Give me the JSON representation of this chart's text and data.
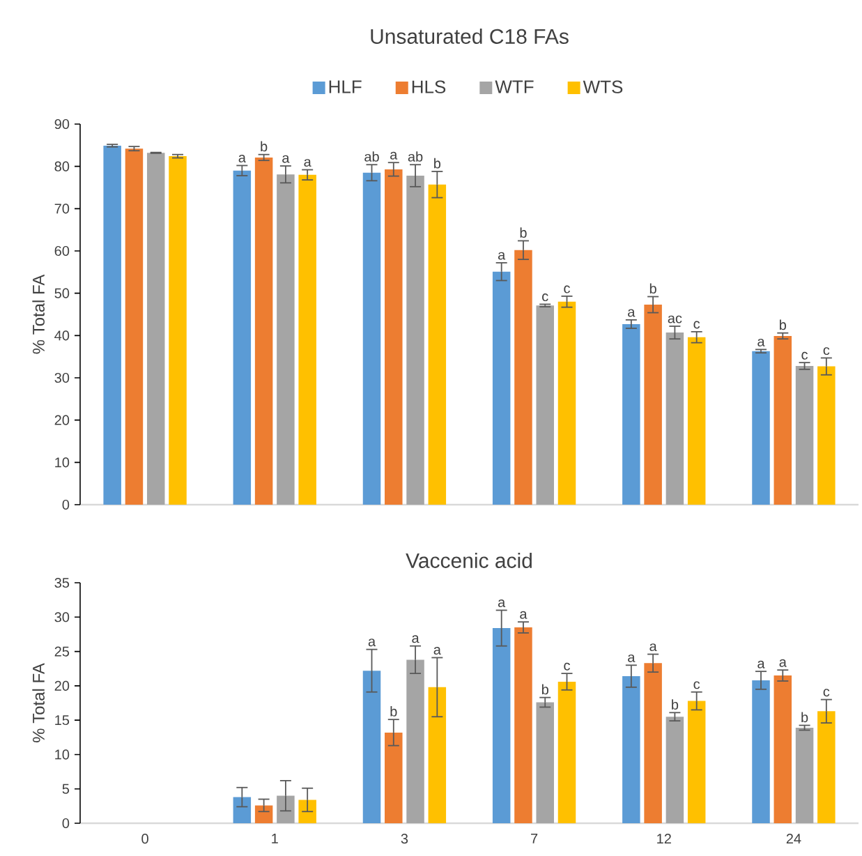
{
  "chart_data": [
    {
      "type": "bar",
      "title": "Unsaturated C18 FAs",
      "ylabel": "% Total FA",
      "categories": [
        "0",
        "1",
        "3",
        "7",
        "12",
        "24"
      ],
      "tick_labels": "y",
      "legend": "top",
      "ylim": [
        0,
        90
      ],
      "yticks": [
        0,
        10,
        20,
        30,
        40,
        50,
        60,
        70,
        80,
        90
      ],
      "series": [
        {
          "name": "HLF",
          "color": "#5b9bd5",
          "values": [
            84.9,
            79.0,
            78.5,
            55.1,
            42.7,
            36.3
          ],
          "errors": [
            0.3,
            1.2,
            1.9,
            2.1,
            1.0,
            0.4
          ],
          "value_labels": [
            null,
            "a",
            "ab",
            "a",
            "a",
            "a"
          ]
        },
        {
          "name": "HLS",
          "color": "#ed7d31",
          "values": [
            84.2,
            82.1,
            79.3,
            60.2,
            47.3,
            39.9
          ],
          "errors": [
            0.5,
            0.7,
            1.6,
            2.2,
            1.9,
            0.7
          ],
          "value_labels": [
            null,
            "b",
            "a",
            "b",
            "b",
            "b"
          ]
        },
        {
          "name": "WTF",
          "color": "#a5a5a5",
          "values": [
            83.2,
            78.1,
            77.8,
            47.1,
            40.7,
            32.8
          ],
          "errors": [
            0.1,
            2.0,
            2.6,
            0.3,
            1.5,
            0.8
          ],
          "value_labels": [
            null,
            "a",
            "ab",
            "c",
            "ac",
            "c"
          ]
        },
        {
          "name": "WTS",
          "color": "#ffc000",
          "values": [
            82.4,
            78.0,
            75.7,
            48.0,
            39.6,
            32.7
          ],
          "errors": [
            0.4,
            1.2,
            3.1,
            1.3,
            1.3,
            2.0
          ],
          "value_labels": [
            null,
            "a",
            "b",
            "c",
            "c",
            "c"
          ]
        }
      ]
    },
    {
      "type": "bar",
      "title": "Vaccenic acid",
      "ylabel": "% Total FA",
      "categories": [
        "0",
        "1",
        "3",
        "7",
        "12",
        "24"
      ],
      "ylim": [
        0,
        35
      ],
      "yticks": [
        0,
        5,
        10,
        15,
        20,
        25,
        30,
        35
      ],
      "series": [
        {
          "color": "#5b9bd5",
          "values": [
            null,
            3.8,
            22.2,
            28.4,
            21.4,
            20.8
          ],
          "errors": [
            null,
            1.4,
            3.1,
            2.6,
            1.6,
            1.3
          ],
          "value_labels": [
            null,
            null,
            "a",
            "a",
            "a",
            "a"
          ]
        },
        {
          "color": "#ed7d31",
          "values": [
            null,
            2.6,
            13.2,
            28.5,
            23.3,
            21.5
          ],
          "errors": [
            null,
            0.9,
            1.9,
            0.8,
            1.3,
            0.8
          ],
          "value_labels": [
            null,
            null,
            "b",
            "a",
            "a",
            "a"
          ]
        },
        {
          "color": "#a5a5a5",
          "values": [
            null,
            4.0,
            23.8,
            17.6,
            15.5,
            13.9
          ],
          "errors": [
            null,
            2.2,
            2.0,
            0.7,
            0.6,
            0.35
          ],
          "value_labels": [
            null,
            null,
            "a",
            "b",
            "b",
            "b"
          ]
        },
        {
          "color": "#ffc000",
          "values": [
            null,
            3.4,
            19.8,
            20.6,
            17.8,
            16.3
          ],
          "errors": [
            null,
            1.7,
            4.3,
            1.2,
            1.3,
            1.7
          ],
          "value_labels": [
            null,
            null,
            "a",
            "c",
            "c",
            "c"
          ]
        }
      ]
    }
  ]
}
